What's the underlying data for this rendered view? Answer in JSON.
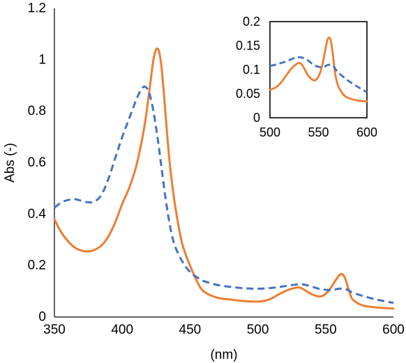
{
  "chart_data": [
    {
      "type": "line",
      "title": "",
      "xlabel": "(nm)",
      "ylabel": "Abs (-)",
      "xlim": [
        350,
        600
      ],
      "ylim": [
        0,
        1.2
      ],
      "xticks": [
        350,
        400,
        450,
        500,
        550,
        600
      ],
      "yticks": [
        0,
        0.2,
        0.4,
        0.6,
        0.8,
        1,
        1.2
      ],
      "xtick_labels": [
        "350",
        "400",
        "450",
        "500",
        "550",
        "600"
      ],
      "ytick_labels": [
        "0",
        "0.2",
        "0.4",
        "0.6",
        "0.8",
        "1",
        "1.2"
      ],
      "grid": false,
      "legend": "none",
      "series": [
        {
          "style": "solid",
          "color": "#ed7d31",
          "x": [
            350,
            355,
            360,
            365,
            370,
            375,
            380,
            385,
            390,
            395,
            400,
            405,
            410,
            415,
            418,
            421,
            423,
            425,
            427,
            429,
            431,
            433,
            435,
            438,
            441,
            444,
            447,
            450,
            455,
            460,
            470,
            480,
            490,
            500,
            505,
            510,
            515,
            520,
            525,
            530,
            533,
            536,
            540,
            545,
            548,
            551,
            554,
            557,
            560,
            562,
            564,
            566,
            568,
            570,
            575,
            580,
            590,
            600
          ],
          "y": [
            0.38,
            0.33,
            0.295,
            0.27,
            0.258,
            0.255,
            0.262,
            0.28,
            0.315,
            0.37,
            0.44,
            0.5,
            0.58,
            0.7,
            0.8,
            0.92,
            1.0,
            1.04,
            1.035,
            0.97,
            0.85,
            0.72,
            0.6,
            0.47,
            0.37,
            0.29,
            0.24,
            0.2,
            0.14,
            0.1,
            0.075,
            0.068,
            0.062,
            0.06,
            0.063,
            0.072,
            0.087,
            0.1,
            0.11,
            0.115,
            0.11,
            0.1,
            0.088,
            0.08,
            0.083,
            0.095,
            0.115,
            0.14,
            0.162,
            0.167,
            0.155,
            0.125,
            0.09,
            0.068,
            0.05,
            0.042,
            0.036,
            0.033
          ]
        },
        {
          "style": "dashed",
          "color": "#4472c4",
          "x": [
            350,
            355,
            360,
            365,
            370,
            375,
            380,
            385,
            390,
            395,
            400,
            405,
            410,
            414,
            417,
            420,
            423,
            426,
            429,
            432,
            435,
            438,
            441,
            445,
            450,
            455,
            460,
            470,
            480,
            490,
            500,
            510,
            520,
            530,
            535,
            540,
            545,
            550,
            555,
            560,
            565,
            570,
            580,
            590,
            600
          ],
          "y": [
            0.425,
            0.445,
            0.455,
            0.458,
            0.452,
            0.446,
            0.45,
            0.478,
            0.54,
            0.62,
            0.7,
            0.77,
            0.84,
            0.885,
            0.895,
            0.87,
            0.8,
            0.7,
            0.58,
            0.46,
            0.36,
            0.29,
            0.25,
            0.21,
            0.175,
            0.155,
            0.14,
            0.125,
            0.117,
            0.112,
            0.11,
            0.113,
            0.12,
            0.127,
            0.125,
            0.118,
            0.11,
            0.106,
            0.105,
            0.11,
            0.108,
            0.095,
            0.078,
            0.065,
            0.055
          ]
        }
      ]
    },
    {
      "type": "line",
      "title": "",
      "xlabel": "",
      "ylabel": "",
      "xlim": [
        500,
        600
      ],
      "ylim": [
        0,
        0.2
      ],
      "xticks": [
        500,
        550,
        600
      ],
      "yticks": [
        0,
        0.05,
        0.1,
        0.15,
        0.2
      ],
      "xtick_labels": [
        "500",
        "550",
        "600"
      ],
      "ytick_labels": [
        "0",
        "0.05",
        "0.1",
        "0.15",
        "0.2"
      ],
      "grid": false,
      "legend": "none",
      "series": [
        {
          "style": "solid",
          "color": "#ed7d31",
          "x": [
            500,
            505,
            510,
            515,
            520,
            525,
            530,
            533,
            536,
            540,
            545,
            548,
            551,
            554,
            557,
            559,
            561,
            563,
            565,
            567,
            570,
            575,
            580,
            590,
            600
          ],
          "y": [
            0.058,
            0.062,
            0.07,
            0.083,
            0.097,
            0.108,
            0.114,
            0.11,
            0.1,
            0.086,
            0.078,
            0.08,
            0.09,
            0.11,
            0.14,
            0.16,
            0.167,
            0.158,
            0.13,
            0.095,
            0.068,
            0.05,
            0.042,
            0.036,
            0.034
          ]
        },
        {
          "style": "dashed",
          "color": "#4472c4",
          "x": [
            500,
            505,
            510,
            515,
            520,
            525,
            530,
            535,
            540,
            545,
            550,
            555,
            560,
            565,
            570,
            580,
            590,
            600
          ],
          "y": [
            0.108,
            0.11,
            0.113,
            0.116,
            0.12,
            0.124,
            0.126,
            0.124,
            0.118,
            0.11,
            0.106,
            0.105,
            0.11,
            0.108,
            0.095,
            0.078,
            0.065,
            0.053
          ]
        }
      ]
    }
  ]
}
